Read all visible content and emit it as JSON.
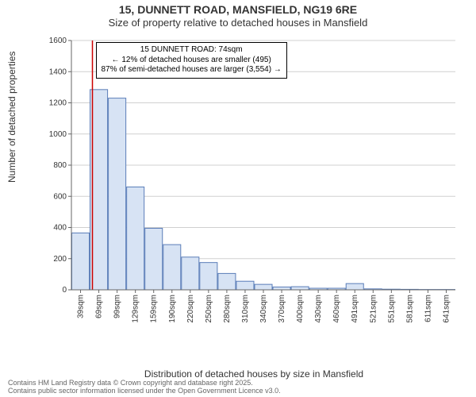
{
  "title": {
    "main": "15, DUNNETT ROAD, MANSFIELD, NG19 6RE",
    "sub": "Size of property relative to detached houses in Mansfield"
  },
  "y_axis": {
    "label": "Number of detached properties",
    "min": 0,
    "max": 1600,
    "tick_step": 200,
    "ticks": [
      0,
      200,
      400,
      600,
      800,
      1000,
      1200,
      1400,
      1600
    ]
  },
  "x_axis": {
    "label": "Distribution of detached houses by size in Mansfield",
    "categories": [
      "39sqm",
      "69sqm",
      "99sqm",
      "129sqm",
      "159sqm",
      "190sqm",
      "220sqm",
      "250sqm",
      "280sqm",
      "310sqm",
      "340sqm",
      "370sqm",
      "400sqm",
      "430sqm",
      "460sqm",
      "491sqm",
      "521sqm",
      "551sqm",
      "581sqm",
      "611sqm",
      "641sqm"
    ]
  },
  "bars": {
    "values": [
      365,
      1285,
      1230,
      660,
      395,
      290,
      210,
      175,
      105,
      55,
      35,
      18,
      20,
      10,
      10,
      40,
      6,
      4,
      3,
      2,
      2
    ],
    "fill": "#d7e3f4",
    "stroke": "#5a7db8"
  },
  "reference_line": {
    "x_index": 1.15,
    "color": "#cc0000"
  },
  "annotation": {
    "line1": "15 DUNNETT ROAD: 74sqm",
    "line2": "← 12% of detached houses are smaller (495)",
    "line3": "87% of semi-detached houses are larger (3,554) →",
    "fontsize": 10
  },
  "style": {
    "background": "#ffffff",
    "grid_color": "#d0d0d0",
    "axis_color": "#666666",
    "text_color": "#333333",
    "title_fontsize": 14,
    "subtitle_fontsize": 13,
    "label_fontsize": 12,
    "tick_fontsize": 10
  },
  "footer": {
    "line1": "Contains HM Land Registry data © Crown copyright and database right 2025.",
    "line2": "Contains public sector information licensed under the Open Government Licence v3.0."
  }
}
